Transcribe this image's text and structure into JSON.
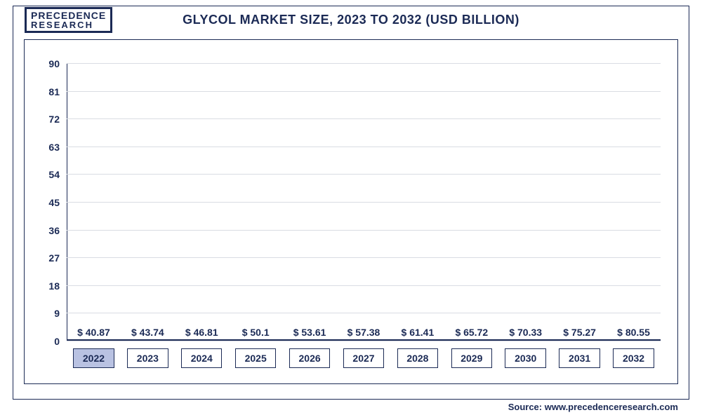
{
  "logo": {
    "line1": "PRECEDENCE",
    "line2": "RESEARCH"
  },
  "title": "GLYCOL MARKET SIZE, 2023 TO 2032 (USD BILLION)",
  "title_fontsize": 18,
  "source": "Source: www.precedenceresearch.com",
  "chart": {
    "type": "bar",
    "background_color": "#ffffff",
    "grid_color": "#d9dce3",
    "axis_color": "#1b2a55",
    "label_color": "#1b2a55",
    "label_fontsize": 14,
    "ylim": [
      0,
      90
    ],
    "ytick_step": 9,
    "yticks": [
      0,
      9,
      18,
      27,
      36,
      45,
      54,
      63,
      72,
      81,
      90
    ],
    "bar_width_pct": 76,
    "categories": [
      "2022",
      "2023",
      "2024",
      "2025",
      "2026",
      "2027",
      "2028",
      "2029",
      "2030",
      "2031",
      "2032"
    ],
    "values": [
      40.87,
      43.74,
      46.81,
      50.1,
      53.61,
      57.38,
      61.41,
      65.72,
      70.33,
      75.27,
      80.55
    ],
    "value_labels": [
      "$ 40.87",
      "$ 43.74",
      "$ 46.81",
      "$ 50.1",
      "$ 53.61",
      "$ 57.38",
      "$ 61.41",
      "$ 65.72",
      "$ 70.33",
      "$ 75.27",
      "$ 80.55"
    ],
    "bar_colors": [
      "#b9c2e2",
      "#59699d",
      "#47578f",
      "#3d4f8b",
      "#344886",
      "#2a3d7e",
      "#1e3368",
      "#1a2d5e",
      "#172955",
      "#14244d",
      "#111f44"
    ],
    "x_pill_bg": [
      "#b9c2e2",
      "#ffffff",
      "#ffffff",
      "#ffffff",
      "#ffffff",
      "#ffffff",
      "#ffffff",
      "#ffffff",
      "#ffffff",
      "#ffffff",
      "#ffffff"
    ]
  }
}
